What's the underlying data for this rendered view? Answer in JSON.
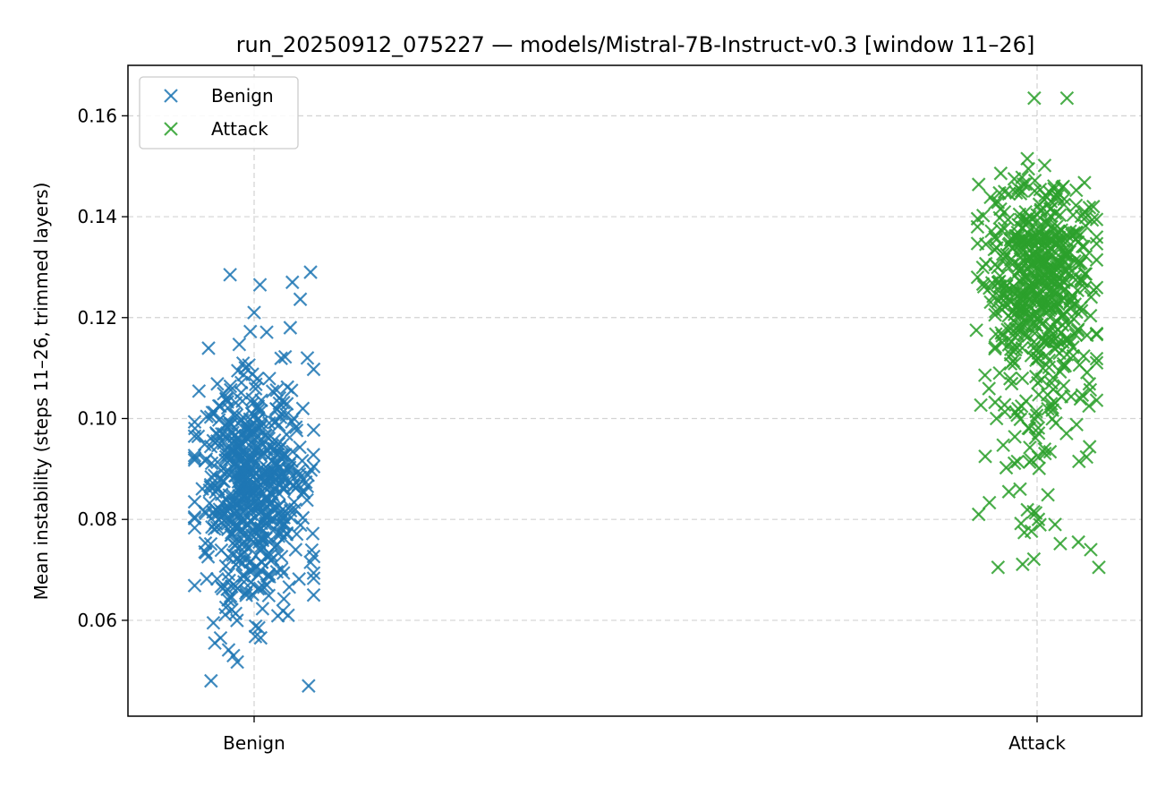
{
  "chart_data": {
    "type": "scatter",
    "title": "run_20250912_075227 — models/Mistral-7B-Instruct-v0.3  [window 11–26]",
    "xlabel": "",
    "ylabel": "Mean instability (steps 11–26, trimmed layers)",
    "categories": [
      "Benign",
      "Attack"
    ],
    "ylim": [
      0.041,
      0.17
    ],
    "yticks": [
      "0.06",
      "0.08",
      "0.10",
      "0.12",
      "0.14",
      "0.16"
    ],
    "grid": true,
    "legend": {
      "placement": "top-left",
      "entries": [
        "Benign",
        "Attack"
      ]
    },
    "marker": "x",
    "jitter": 0.08,
    "series": [
      {
        "name": "Benign",
        "color": "#1f77b4",
        "category": "Benign",
        "count": 600,
        "center": 0.087,
        "spread": 0.012,
        "min": 0.047,
        "max": 0.129,
        "outliers": [
          0.047,
          0.048,
          0.053,
          0.0555,
          0.0565,
          0.0595,
          0.061,
          0.0715,
          0.0715,
          0.0825,
          0.0815,
          0.112,
          0.118,
          0.121,
          0.1265,
          0.127,
          0.1285,
          0.129
        ]
      },
      {
        "name": "Attack",
        "color": "#2ca02c",
        "category": "Attack",
        "count": 600,
        "center": 0.131,
        "spread": 0.008,
        "min": 0.0705,
        "max": 0.1635,
        "outliers": [
          0.0705,
          0.074,
          0.0755,
          0.079,
          0.08,
          0.081,
          0.086,
          0.0915,
          0.1,
          0.109,
          0.1175,
          0.12,
          0.138,
          0.146,
          0.1475,
          0.1465,
          0.1635,
          0.1635
        ]
      }
    ]
  }
}
